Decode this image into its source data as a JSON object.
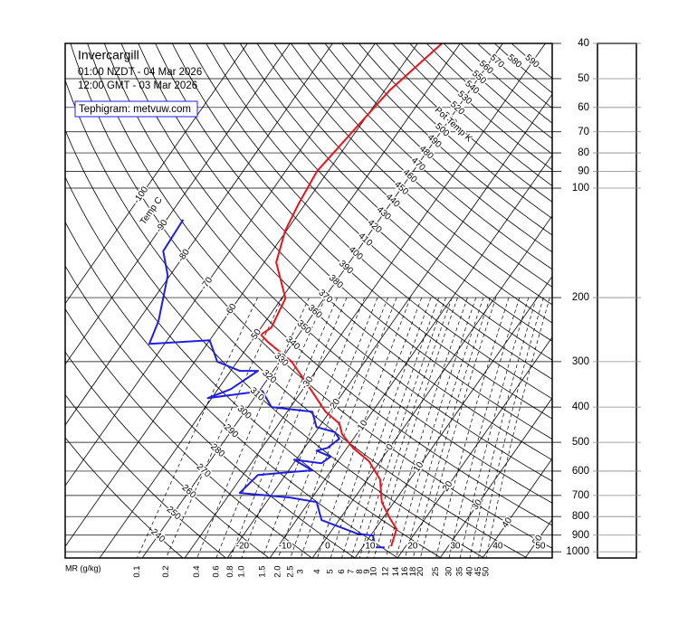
{
  "chart_data": {
    "type": "tephigram",
    "title": "Invercargill",
    "subtitle": [
      "01:00 NZDT - 04 Mar 2026",
      "12:00 GMT - 03 Mar 2026"
    ],
    "annotation": "Tephigram: metvuw.com",
    "ylim": [
      1040,
      40
    ],
    "log_y": true,
    "yticks": [
      40,
      50,
      60,
      70,
      80,
      90,
      100,
      200,
      300,
      400,
      500,
      600,
      700,
      800,
      900,
      1000
    ],
    "isotherm_label": "Temp C",
    "isotherms": [
      -100,
      -90,
      -80,
      -70,
      -60,
      -50,
      -40,
      -30,
      -20,
      -10,
      0,
      10,
      20,
      30,
      40,
      50
    ],
    "isentrope_label": "Pot Temp K",
    "isentropes": [
      240,
      250,
      260,
      270,
      280,
      290,
      300,
      310,
      320,
      330,
      340,
      350,
      360,
      370,
      380,
      390,
      400,
      410,
      420,
      430,
      440,
      450,
      460,
      470,
      480,
      490,
      500,
      510,
      520,
      530,
      540,
      550,
      560,
      570,
      580,
      590
    ],
    "mixing_ratio_label": "MR (g/kg)",
    "mixing_ratios": [
      0.1,
      0.2,
      0.4,
      0.6,
      0.8,
      {
        "value": 1,
        "label": "1.0"
      },
      1.5,
      {
        "value": 2,
        "label": "2.0"
      },
      2.5,
      3,
      4,
      5,
      6,
      7,
      8,
      9,
      10,
      12,
      14,
      16,
      18,
      20,
      25,
      30,
      35,
      40,
      45,
      50
    ],
    "series": [
      {
        "color": "#e8141b",
        "pressure": [
          966,
          866,
          804,
          730,
          633,
          564,
          518,
          475,
          444,
          412,
          347,
          300,
          265,
          253,
          242,
          201,
          160,
          131,
          110,
          90,
          54,
          40
        ],
        "values": [
          16.6,
          15.0,
          11.4,
          7.1,
          3.0,
          -2.6,
          -8.6,
          -13.4,
          -15.8,
          -21.0,
          -29.7,
          -37.2,
          -46.0,
          -48.9,
          -47.6,
          -49.1,
          -57.2,
          -60.3,
          -61.6,
          -62.6,
          -58.9,
          -54.3
        ]
      },
      {
        "color": "#1f1fe0",
        "pressure": [
          972,
          972,
          902,
          892,
          818,
          730,
          709,
          689,
          615,
          604,
          597,
          558,
          571,
          548,
          527,
          518,
          489,
          469,
          454,
          412,
          400,
          361,
          378,
          357,
          318,
          318,
          300,
          262,
          268,
          232,
          174,
          149,
          122
        ],
        "values": [
          15.2,
          13.1,
          10.5,
          6.6,
          -4.1,
          -8.2,
          -15.3,
          -27.8,
          -26.5,
          -19.5,
          -14.5,
          -20.5,
          -13.5,
          -12.4,
          -16.7,
          -14.6,
          -13.3,
          -15.4,
          -20.6,
          -24.1,
          -34.5,
          -39.3,
          -50.9,
          -47.0,
          -43.6,
          -47.9,
          -54.7,
          -60.0,
          -73.6,
          -75.2,
          -80.5,
          -85.6,
          -86.1
        ]
      }
    ]
  }
}
